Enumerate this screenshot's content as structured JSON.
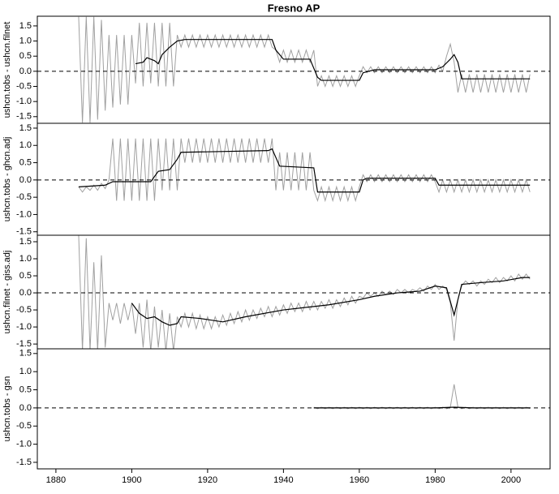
{
  "chart_data": [
    {
      "type": "line",
      "title": "Fresno AP",
      "ylabel": "ushcn.tobs - ushcn.filnet",
      "xlim": [
        1875.1,
        2010.3
      ],
      "ylim": [
        -1.72,
        1.82
      ],
      "yticks": [
        1.5,
        {
          "value": 1,
          "label": "1.0"
        },
        0.5,
        {
          "value": 0,
          "label": "0.0"
        },
        -0.5,
        {
          "value": -1,
          "label": "-1.0"
        },
        -1.5
      ],
      "refline": 0,
      "x": [
        1886,
        1887,
        1888,
        1889,
        1890,
        1891,
        1892,
        1893,
        1894,
        1895,
        1896,
        1897,
        1898,
        1899,
        1900,
        1901,
        1902,
        1903,
        1904,
        1905,
        1906,
        1907,
        1908,
        1909,
        1910,
        1911,
        1912,
        1913,
        1914,
        1915,
        1916,
        1917,
        1918,
        1919,
        1920,
        1921,
        1922,
        1923,
        1924,
        1925,
        1926,
        1927,
        1928,
        1929,
        1930,
        1931,
        1932,
        1933,
        1934,
        1935,
        1936,
        1937,
        1938,
        1939,
        1940,
        1941,
        1942,
        1943,
        1944,
        1945,
        1946,
        1947,
        1948,
        1949,
        1950,
        1951,
        1952,
        1953,
        1954,
        1955,
        1956,
        1957,
        1958,
        1959,
        1960,
        1961,
        1962,
        1963,
        1964,
        1965,
        1966,
        1967,
        1968,
        1969,
        1970,
        1971,
        1972,
        1973,
        1974,
        1975,
        1976,
        1977,
        1978,
        1979,
        1980,
        1981,
        1982,
        1983,
        1984,
        1985,
        1986,
        1987,
        1988,
        1989,
        1990,
        1991,
        1992,
        1993,
        1994,
        1995,
        1996,
        1997,
        1998,
        1999,
        2000,
        2001,
        2002,
        2003,
        2004,
        2005
      ],
      "series": [
        {
          "color": "#a0a0a0",
          "values": [
            1.8,
            -1.7,
            1.8,
            -1.7,
            1.8,
            -1.6,
            1.7,
            -1.3,
            1.2,
            -1.2,
            1.2,
            -1.1,
            1.2,
            -1.1,
            1.2,
            -0.4,
            1.6,
            -0.5,
            1.6,
            -0.4,
            1.6,
            -0.5,
            1.6,
            -0.5,
            1.6,
            -0.5,
            1.2,
            0.8,
            1.2,
            0.8,
            1.2,
            0.8,
            1.2,
            0.8,
            1.2,
            0.8,
            1.2,
            0.8,
            1.2,
            0.8,
            1.2,
            0.8,
            1.2,
            0.8,
            1.2,
            0.8,
            1.2,
            0.8,
            1.2,
            0.8,
            1.2,
            0.8,
            0.7,
            0.3,
            0.7,
            0.3,
            0.7,
            0.3,
            0.7,
            0.3,
            0.7,
            0.3,
            0.7,
            -0.5,
            -0.15,
            -0.5,
            -0.15,
            -0.5,
            -0.15,
            -0.5,
            -0.15,
            -0.5,
            -0.15,
            -0.5,
            -0.15,
            0.15,
            -0.05,
            0.15,
            -0.05,
            0.15,
            -0.05,
            0.15,
            -0.05,
            0.15,
            -0.05,
            0.15,
            -0.05,
            0.15,
            -0.05,
            0.15,
            -0.05,
            0.15,
            -0.05,
            0.15,
            -0.05,
            0.2,
            0.0,
            0.5,
            0.9,
            0.3,
            -0.7,
            -0.1,
            -0.7,
            -0.1,
            -0.7,
            -0.1,
            -0.7,
            -0.1,
            -0.7,
            -0.1,
            -0.7,
            -0.1,
            -0.7,
            -0.1,
            -0.7,
            -0.1,
            -0.7,
            -0.1,
            -0.7,
            -0.1
          ]
        },
        {
          "color": "#000000",
          "x": [
            1901,
            1903,
            1904,
            1906,
            1907,
            1908,
            1910,
            1912,
            1914,
            1937,
            1938,
            1940,
            1947,
            1949,
            1950,
            1960,
            1961,
            1964,
            1980,
            1982,
            1984,
            1985,
            1986,
            1987,
            2005
          ],
          "values": [
            0.25,
            0.3,
            0.45,
            0.35,
            0.25,
            0.55,
            0.8,
            1.0,
            1.05,
            1.05,
            0.7,
            0.4,
            0.4,
            -0.2,
            -0.3,
            -0.3,
            -0.05,
            0.05,
            0.05,
            0.15,
            0.4,
            0.55,
            0.3,
            -0.25,
            -0.25
          ]
        }
      ]
    },
    {
      "type": "line",
      "ylabel": "ushcn.tobs - ghcn.adj",
      "xlim": [
        1875.1,
        2010.3
      ],
      "ylim": [
        -1.6,
        1.64
      ],
      "yticks": [
        1.5,
        {
          "value": 1,
          "label": "1.0"
        },
        0.5,
        {
          "value": 0,
          "label": "0.0"
        },
        -0.5,
        {
          "value": -1,
          "label": "-1.0"
        },
        -1.5
      ],
      "refline": 0,
      "x": [
        1886,
        1887,
        1888,
        1889,
        1890,
        1891,
        1892,
        1893,
        1894,
        1895,
        1896,
        1897,
        1898,
        1899,
        1900,
        1901,
        1902,
        1903,
        1904,
        1905,
        1906,
        1907,
        1908,
        1909,
        1910,
        1911,
        1912,
        1913,
        1914,
        1915,
        1916,
        1917,
        1918,
        1919,
        1920,
        1921,
        1922,
        1923,
        1924,
        1925,
        1926,
        1927,
        1928,
        1929,
        1930,
        1931,
        1932,
        1933,
        1934,
        1935,
        1936,
        1937,
        1938,
        1939,
        1940,
        1941,
        1942,
        1943,
        1944,
        1945,
        1946,
        1947,
        1948,
        1949,
        1950,
        1951,
        1952,
        1953,
        1954,
        1955,
        1956,
        1957,
        1958,
        1959,
        1960,
        1961,
        1962,
        1963,
        1964,
        1965,
        1966,
        1967,
        1968,
        1969,
        1970,
        1971,
        1972,
        1973,
        1974,
        1975,
        1976,
        1977,
        1978,
        1979,
        1980,
        1981,
        1982,
        1983,
        1984,
        1985,
        1986,
        1987,
        1988,
        1989,
        1990,
        1991,
        1992,
        1993,
        1994,
        1995,
        1996,
        1997,
        1998,
        1999,
        2000,
        2001,
        2002,
        2003,
        2004,
        2005
      ],
      "series": [
        {
          "color": "#a0a0a0",
          "values": [
            -0.2,
            -0.35,
            -0.2,
            -0.3,
            -0.15,
            -0.3,
            -0.1,
            -0.25,
            0.0,
            1.2,
            -0.6,
            1.2,
            -0.6,
            1.2,
            -0.6,
            1.2,
            -0.6,
            1.2,
            -0.6,
            1.2,
            -0.6,
            1.2,
            -0.3,
            1.2,
            -0.3,
            1.2,
            -0.3,
            1.2,
            0.5,
            1.2,
            0.5,
            1.2,
            0.5,
            1.2,
            0.5,
            1.2,
            0.5,
            1.2,
            0.5,
            1.2,
            0.5,
            1.2,
            0.5,
            1.2,
            0.5,
            1.2,
            0.5,
            1.2,
            0.5,
            1.2,
            0.5,
            1.2,
            -0.3,
            0.8,
            -0.3,
            0.8,
            -0.3,
            0.8,
            -0.3,
            0.8,
            -0.3,
            0.8,
            -0.3,
            -0.6,
            -0.2,
            -0.6,
            -0.2,
            -0.6,
            -0.2,
            -0.6,
            -0.2,
            -0.6,
            -0.2,
            -0.6,
            -0.2,
            0.15,
            -0.05,
            0.15,
            -0.05,
            0.15,
            -0.05,
            0.15,
            -0.05,
            0.15,
            -0.05,
            0.15,
            -0.05,
            0.15,
            -0.05,
            0.15,
            -0.05,
            0.15,
            -0.05,
            0.15,
            -0.05,
            -0.35,
            0.0,
            -0.35,
            0.0,
            -0.35,
            0.0,
            -0.35,
            0.0,
            -0.35,
            0.0,
            -0.35,
            0.0,
            -0.35,
            0.0,
            -0.35,
            0.0,
            -0.35,
            0.0,
            -0.35,
            0.0,
            -0.35,
            0.0,
            -0.35,
            0.0,
            -0.35
          ]
        },
        {
          "color": "#000000",
          "x": [
            1886,
            1893,
            1895,
            1905,
            1907,
            1910,
            1912,
            1913,
            1936,
            1937,
            1939,
            1948,
            1949,
            1960,
            1961,
            1962,
            1980,
            1981,
            2005
          ],
          "values": [
            -0.2,
            -0.15,
            -0.05,
            -0.05,
            0.25,
            0.3,
            0.6,
            0.8,
            0.85,
            0.9,
            0.4,
            0.35,
            -0.35,
            -0.35,
            0.0,
            0.05,
            0.05,
            -0.15,
            -0.15
          ]
        }
      ]
    },
    {
      "type": "line",
      "ylabel": "ushcn.filnet - giss.adj",
      "xlim": [
        1875.1,
        2010.3
      ],
      "ylim": [
        -1.64,
        1.69
      ],
      "yticks": [
        1.5,
        {
          "value": 1,
          "label": "1.0"
        },
        0.5,
        {
          "value": 0,
          "label": "0.0"
        },
        -0.5,
        {
          "value": -1,
          "label": "-1.0"
        },
        -1.5
      ],
      "refline": 0,
      "x": [
        1886,
        1887,
        1888,
        1889,
        1890,
        1891,
        1892,
        1893,
        1894,
        1895,
        1896,
        1897,
        1898,
        1899,
        1900,
        1901,
        1902,
        1903,
        1904,
        1905,
        1906,
        1907,
        1908,
        1909,
        1910,
        1911,
        1912,
        1913,
        1914,
        1915,
        1916,
        1917,
        1918,
        1919,
        1920,
        1921,
        1922,
        1923,
        1924,
        1925,
        1926,
        1927,
        1928,
        1929,
        1930,
        1931,
        1932,
        1933,
        1934,
        1935,
        1936,
        1937,
        1938,
        1939,
        1940,
        1941,
        1942,
        1943,
        1944,
        1945,
        1946,
        1947,
        1948,
        1949,
        1950,
        1951,
        1952,
        1953,
        1954,
        1955,
        1956,
        1957,
        1958,
        1959,
        1960,
        1961,
        1962,
        1963,
        1964,
        1965,
        1966,
        1967,
        1968,
        1969,
        1970,
        1971,
        1972,
        1973,
        1974,
        1975,
        1976,
        1977,
        1978,
        1979,
        1980,
        1981,
        1982,
        1983,
        1984,
        1985,
        1986,
        1987,
        1988,
        1989,
        1990,
        1991,
        1992,
        1993,
        1994,
        1995,
        1996,
        1997,
        1998,
        1999,
        2000,
        2001,
        2002,
        2003,
        2004,
        2005
      ],
      "series": [
        {
          "color": "#a0a0a0",
          "values": [
            1.7,
            -1.7,
            1.6,
            -1.7,
            0.9,
            -1.7,
            1.1,
            -1.6,
            -0.3,
            -0.8,
            -0.3,
            -0.9,
            -0.3,
            -0.8,
            -0.3,
            -1.2,
            -0.3,
            -1.6,
            -0.2,
            -1.7,
            -0.4,
            -1.6,
            -0.5,
            -1.7,
            -0.6,
            -1.7,
            -0.7,
            -1.0,
            -0.6,
            -1.0,
            -0.6,
            -1.05,
            -0.65,
            -1.05,
            -0.7,
            -1.05,
            -0.7,
            -1.0,
            -0.65,
            -0.95,
            -0.6,
            -0.9,
            -0.55,
            -0.85,
            -0.5,
            -0.8,
            -0.5,
            -0.75,
            -0.45,
            -0.7,
            -0.4,
            -0.7,
            -0.4,
            -0.65,
            -0.35,
            -0.6,
            -0.3,
            -0.55,
            -0.3,
            -0.55,
            -0.25,
            -0.5,
            -0.25,
            -0.5,
            -0.25,
            -0.45,
            -0.2,
            -0.45,
            -0.2,
            -0.4,
            -0.15,
            -0.35,
            -0.1,
            -0.3,
            -0.1,
            -0.15,
            0.0,
            -0.1,
            0.0,
            -0.1,
            0.05,
            -0.05,
            0.05,
            -0.05,
            0.1,
            0.0,
            0.1,
            0.0,
            0.1,
            0.05,
            0.15,
            0.05,
            0.2,
            0.1,
            0.25,
            0.1,
            0.2,
            0.1,
            -0.3,
            -1.4,
            -0.2,
            0.2,
            0.35,
            0.25,
            0.35,
            0.2,
            0.35,
            0.25,
            0.4,
            0.3,
            0.45,
            0.3,
            0.45,
            0.35,
            0.5,
            0.35,
            0.55,
            0.4,
            0.55,
            0.4
          ]
        },
        {
          "color": "#000000",
          "x": [
            1900,
            1902,
            1904,
            1906,
            1908,
            1910,
            1912,
            1913,
            1918,
            1924,
            1930,
            1940,
            1948,
            1952,
            1960,
            1964,
            1970,
            1976,
            1980,
            1983,
            1985,
            1987,
            1992,
            1998,
            2003,
            2005
          ],
          "values": [
            -0.3,
            -0.6,
            -0.75,
            -0.7,
            -0.85,
            -0.95,
            -0.9,
            -0.7,
            -0.75,
            -0.85,
            -0.7,
            -0.5,
            -0.4,
            -0.35,
            -0.2,
            -0.1,
            0,
            0.05,
            0.2,
            0.15,
            -0.65,
            0.25,
            0.3,
            0.35,
            0.45,
            0.45
          ]
        }
      ]
    },
    {
      "type": "line",
      "ylabel": "ushcn.tobs - gsn",
      "xlim": [
        1875.1,
        2010.3
      ],
      "ylim": [
        -1.68,
        1.63
      ],
      "xticks": [
        1880,
        1900,
        1920,
        1940,
        1960,
        1980,
        2000
      ],
      "yticks": [
        1.5,
        {
          "value": 1,
          "label": "1.0"
        },
        0.5,
        {
          "value": 0,
          "label": "0.0"
        },
        -0.5,
        {
          "value": -1,
          "label": "-1.0"
        },
        -1.5
      ],
      "refline": 0,
      "x": [
        1948,
        1949,
        1950,
        1951,
        1952,
        1953,
        1954,
        1955,
        1956,
        1957,
        1958,
        1959,
        1960,
        1961,
        1962,
        1963,
        1964,
        1965,
        1966,
        1967,
        1968,
        1969,
        1970,
        1971,
        1972,
        1973,
        1974,
        1975,
        1976,
        1977,
        1978,
        1979,
        1980,
        1981,
        1982,
        1983,
        1984,
        1985,
        1986,
        1987,
        1988,
        1989,
        1990,
        1991,
        1992,
        1993,
        1994,
        1995,
        1996,
        1997,
        1998,
        1999,
        2000,
        2001,
        2002,
        2003,
        2004,
        2005
      ],
      "series": [
        {
          "color": "#a0a0a0",
          "values": [
            0.02,
            -0.02,
            0.02,
            -0.02,
            0.02,
            -0.02,
            0.02,
            -0.02,
            0.02,
            -0.02,
            0.02,
            -0.02,
            0.02,
            -0.02,
            0.02,
            -0.02,
            0.02,
            -0.02,
            0.02,
            -0.02,
            0.02,
            -0.02,
            0.02,
            -0.02,
            0.02,
            -0.02,
            0.02,
            -0.02,
            0.02,
            -0.02,
            0.02,
            -0.02,
            0.02,
            -0.02,
            0.02,
            -0.02,
            0.02,
            0.65,
            0.02,
            -0.02,
            0.02,
            -0.02,
            0.02,
            -0.02,
            0.02,
            -0.02,
            0.02,
            -0.02,
            0.02,
            -0.02,
            0.02,
            -0.02,
            0.02,
            -0.02,
            0.02,
            -0.02,
            0.02,
            -0.02
          ]
        },
        {
          "color": "#000000",
          "x": [
            1948,
            1960,
            1970,
            1980,
            1985,
            1990,
            2000,
            2005
          ],
          "values": [
            0.0,
            0.0,
            0.0,
            0.0,
            0.02,
            0.0,
            0.0,
            0.0
          ]
        }
      ]
    }
  ]
}
